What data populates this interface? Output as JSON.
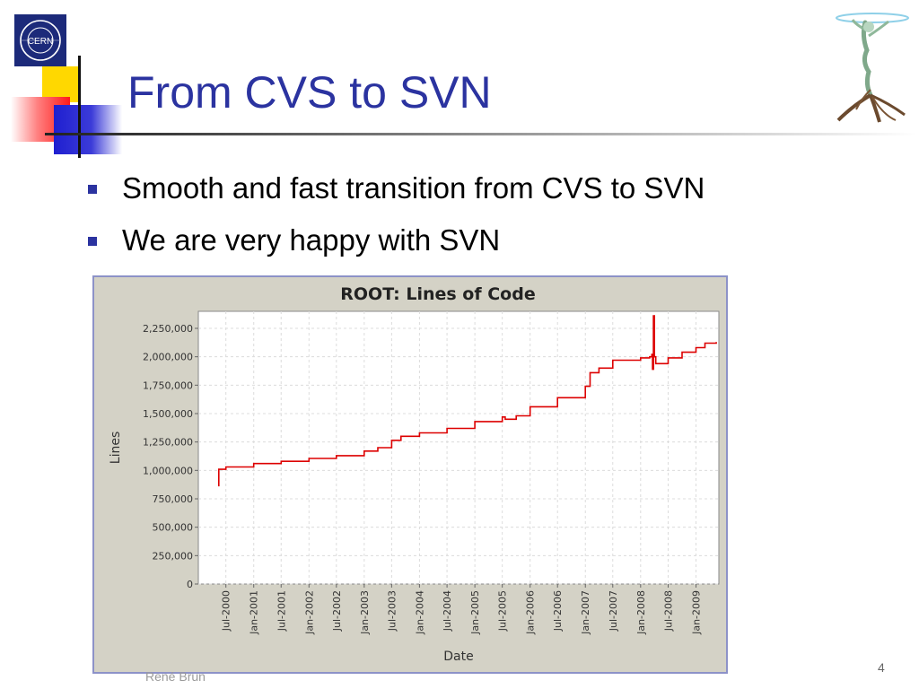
{
  "slide": {
    "title": "From CVS to SVN",
    "bullets": [
      "Smooth and fast transition from CVS to SVN",
      "We are very happy with SVN"
    ],
    "footer_author": "René Brun",
    "page_number": "4",
    "logo_text": "CERN",
    "accent_color": "#2b33a0"
  },
  "chart_data": {
    "type": "line",
    "title": "ROOT: Lines of Code",
    "xlabel": "Date",
    "ylabel": "Lines",
    "ylim": [
      0,
      2400000
    ],
    "xlim": [
      "2000-01-01",
      "2009-06-01"
    ],
    "y_ticks": [
      0,
      250000,
      500000,
      750000,
      1000000,
      1250000,
      1500000,
      1750000,
      2000000,
      2250000
    ],
    "y_tick_labels": [
      "0",
      "250,000",
      "500,000",
      "750,000",
      "1,000,000",
      "1,250,000",
      "1,500,000",
      "1,750,000",
      "2,000,000",
      "2,250,000"
    ],
    "x_ticks": [
      "2000-07-01",
      "2001-01-01",
      "2001-07-01",
      "2002-01-01",
      "2002-07-01",
      "2003-01-01",
      "2003-07-01",
      "2004-01-01",
      "2004-07-01",
      "2005-01-01",
      "2005-07-01",
      "2006-01-01",
      "2006-07-01",
      "2007-01-01",
      "2007-07-01",
      "2008-01-01",
      "2008-07-01",
      "2009-01-01"
    ],
    "x_tick_labels": [
      "Jul-2000",
      "Jan-2001",
      "Jul-2001",
      "Jan-2002",
      "Jul-2002",
      "Jan-2003",
      "Jul-2003",
      "Jan-2004",
      "Jul-2004",
      "Jan-2005",
      "Jul-2005",
      "Jan-2006",
      "Jul-2006",
      "Jan-2007",
      "Jul-2007",
      "Jan-2008",
      "Jul-2008",
      "Jan-2009"
    ],
    "grid": true,
    "line_color": "#dd0000",
    "series": [
      {
        "points": [
          [
            "2000-05-15",
            860000
          ],
          [
            "2000-05-15",
            1010000
          ],
          [
            "2000-07-01",
            1030000
          ],
          [
            "2001-01-01",
            1060000
          ],
          [
            "2001-07-01",
            1080000
          ],
          [
            "2002-01-01",
            1105000
          ],
          [
            "2002-07-01",
            1130000
          ],
          [
            "2003-01-01",
            1170000
          ],
          [
            "2003-04-01",
            1200000
          ],
          [
            "2003-07-01",
            1265000
          ],
          [
            "2003-09-01",
            1300000
          ],
          [
            "2004-01-01",
            1330000
          ],
          [
            "2004-07-01",
            1370000
          ],
          [
            "2005-01-01",
            1430000
          ],
          [
            "2005-07-01",
            1470000
          ],
          [
            "2005-07-20",
            1450000
          ],
          [
            "2005-10-01",
            1480000
          ],
          [
            "2006-01-01",
            1560000
          ],
          [
            "2006-07-01",
            1640000
          ],
          [
            "2007-01-01",
            1740000
          ],
          [
            "2007-02-01",
            1860000
          ],
          [
            "2007-04-01",
            1900000
          ],
          [
            "2007-07-01",
            1970000
          ],
          [
            "2008-01-01",
            1990000
          ],
          [
            "2008-03-01",
            2000000
          ],
          [
            "2008-03-15",
            2020000
          ],
          [
            "2008-03-20",
            1890000
          ],
          [
            "2008-03-26",
            2360000
          ],
          [
            "2008-04-01",
            2000000
          ],
          [
            "2008-04-10",
            1940000
          ],
          [
            "2008-07-01",
            1990000
          ],
          [
            "2008-10-01",
            2040000
          ],
          [
            "2009-01-01",
            2080000
          ],
          [
            "2009-03-01",
            2120000
          ],
          [
            "2009-05-15",
            2130000
          ]
        ]
      }
    ]
  }
}
